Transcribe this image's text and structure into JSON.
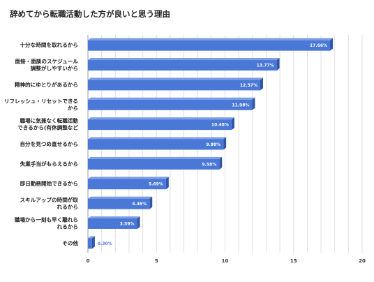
{
  "chart_data": {
    "type": "bar",
    "orientation": "horizontal",
    "title": "辞めてから転職活動した方が良いと思う理由",
    "categories": [
      [
        "十分な時間を取れるから"
      ],
      [
        "面接・面談のスケジュール",
        "調整がしやすいから"
      ],
      [
        "精神的にゆとりがあるから"
      ],
      [
        "リフレッシュ・リセットできる",
        "から"
      ],
      [
        "職場に気兼なく転職活動",
        "できるから(有休調整など"
      ],
      [
        "自分を見つめ直せるから"
      ],
      [
        "失業手当がもらえるから"
      ],
      [
        "即日勤務開始できるから"
      ],
      [
        "スキルアップの時間が取",
        "れるから"
      ],
      [
        "職場から一刻も早く離れら",
        "れるから"
      ],
      [
        "その他"
      ]
    ],
    "values": [
      17.66,
      13.77,
      12.57,
      11.98,
      10.48,
      9.88,
      9.58,
      5.69,
      4.49,
      3.59,
      0.3
    ],
    "value_labels": [
      "17.66%",
      "13.77%",
      "12.57%",
      "11.98%",
      "10.48%",
      "9.88%",
      "9.58%",
      "5.69%",
      "4.49%",
      "3.59%",
      "0.30%"
    ],
    "xlim": [
      0,
      20
    ],
    "xticks": [
      0,
      5,
      10,
      15,
      20
    ],
    "xlabel": "",
    "ylabel": "",
    "grid": true,
    "legend": "none",
    "colors": {
      "bar_front": "#4a78d6",
      "bar_top": "#7c9ee6",
      "bar_side": "#2f56a8",
      "label_outside": "#4a78d6"
    }
  }
}
